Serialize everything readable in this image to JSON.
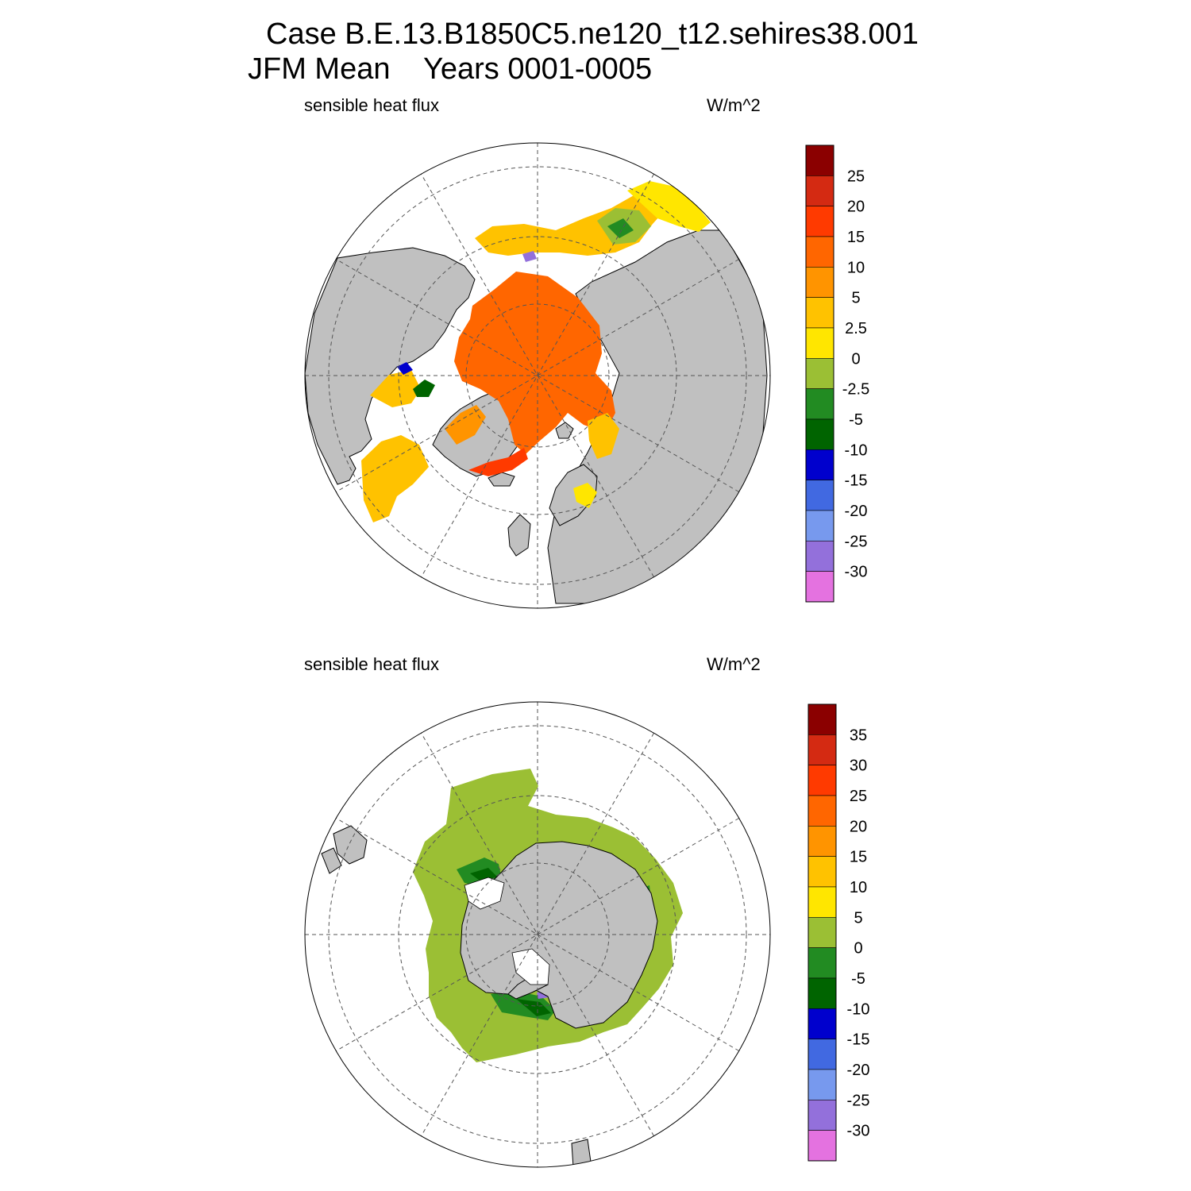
{
  "title": {
    "line1": "Case B.E.13.B1850C5.ne120_t12.sehires38.001",
    "line2": "JFM Mean    Years 0001-0005"
  },
  "colors": {
    "land": "#c0c0c0",
    "ice_free": "#ffffff",
    "coast": "#000000",
    "grid": "#555555"
  },
  "panels": [
    {
      "id": "north",
      "hemisphere": "Arctic (North Polar Stereographic)",
      "variable": "sensible heat flux",
      "units": "W/m^2",
      "colorbar": {
        "levels": [
          "25",
          "20",
          "15",
          "10",
          "5",
          "2.5",
          "0",
          "-2.5",
          "-5",
          "-10",
          "-15",
          "-20",
          "-25",
          "-30"
        ],
        "colors": [
          "#8b0000",
          "#d42a12",
          "#ff3a00",
          "#ff6600",
          "#ff9400",
          "#ffc200",
          "#ffe600",
          "#9bbf34",
          "#228b22",
          "#006400",
          "#0000cd",
          "#4169e1",
          "#7799ee",
          "#9370db",
          "#e472e0"
        ]
      }
    },
    {
      "id": "south",
      "hemisphere": "Antarctic (South Polar Stereographic)",
      "variable": "sensible heat flux",
      "units": "W/m^2",
      "colorbar": {
        "levels": [
          "35",
          "30",
          "25",
          "20",
          "15",
          "10",
          "5",
          "0",
          "-5",
          "-10",
          "-15",
          "-20",
          "-25",
          "-30"
        ],
        "colors": [
          "#8b0000",
          "#d42a12",
          "#ff3a00",
          "#ff6600",
          "#ff9400",
          "#ffc200",
          "#ffe600",
          "#9bbf34",
          "#228b22",
          "#006400",
          "#0000cd",
          "#4169e1",
          "#7799ee",
          "#9370db",
          "#e472e0"
        ]
      }
    }
  ]
}
